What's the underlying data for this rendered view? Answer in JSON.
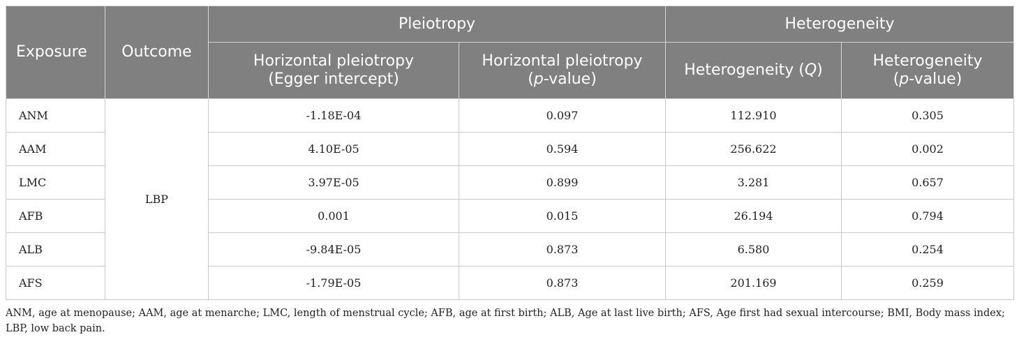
{
  "header": {
    "exposure": "Exposure",
    "outcome": "Outcome",
    "group_pleiotropy": "Pleiotropy",
    "group_heterogeneity": "Heterogeneity",
    "col_hp_egger_line1": "Horizontal pleiotropy",
    "col_hp_egger_line2": "(Egger intercept)",
    "col_hp_p_line1": "Horizontal pleiotropy",
    "col_hp_p_italic": "p",
    "col_hp_p_rest": "-value)",
    "col_het_q_text": "Heterogeneity (",
    "col_het_q_italic": "Q",
    "col_het_q_close": ")",
    "col_het_p_line1": "Heterogeneity",
    "col_het_p_italic": "p",
    "col_het_p_rest": "-value)"
  },
  "outcome_value": "LBP",
  "rows": [
    {
      "exposure": "ANM",
      "egger_intercept": "-1.18E-04",
      "hp_p": "0.097",
      "q": "112.910",
      "het_p": "0.305"
    },
    {
      "exposure": "AAM",
      "egger_intercept": "4.10E-05",
      "hp_p": "0.594",
      "q": "256.622",
      "het_p": "0.002"
    },
    {
      "exposure": "LMC",
      "egger_intercept": "3.97E-05",
      "hp_p": "0.899",
      "q": "3.281",
      "het_p": "0.657"
    },
    {
      "exposure": "AFB",
      "egger_intercept": "0.001",
      "hp_p": "0.015",
      "q": "26.194",
      "het_p": "0.794"
    },
    {
      "exposure": "ALB",
      "egger_intercept": "-9.84E-05",
      "hp_p": "0.873",
      "q": "6.580",
      "het_p": "0.254"
    },
    {
      "exposure": "AFS",
      "egger_intercept": "-1.79E-05",
      "hp_p": "0.873",
      "q": "201.169",
      "het_p": "0.259"
    }
  ],
  "footnote": "ANM, age at menopause; AAM, age at menarche; LMC, length of menstrual cycle; AFB, age at first birth; ALB, Age at last live birth; AFS, Age first had sexual intercourse; BMI, Body mass index; LBP, low back pain.",
  "colors": {
    "header_bg": "#808080",
    "header_text": "#ffffff",
    "border": "#c9c9c9"
  }
}
